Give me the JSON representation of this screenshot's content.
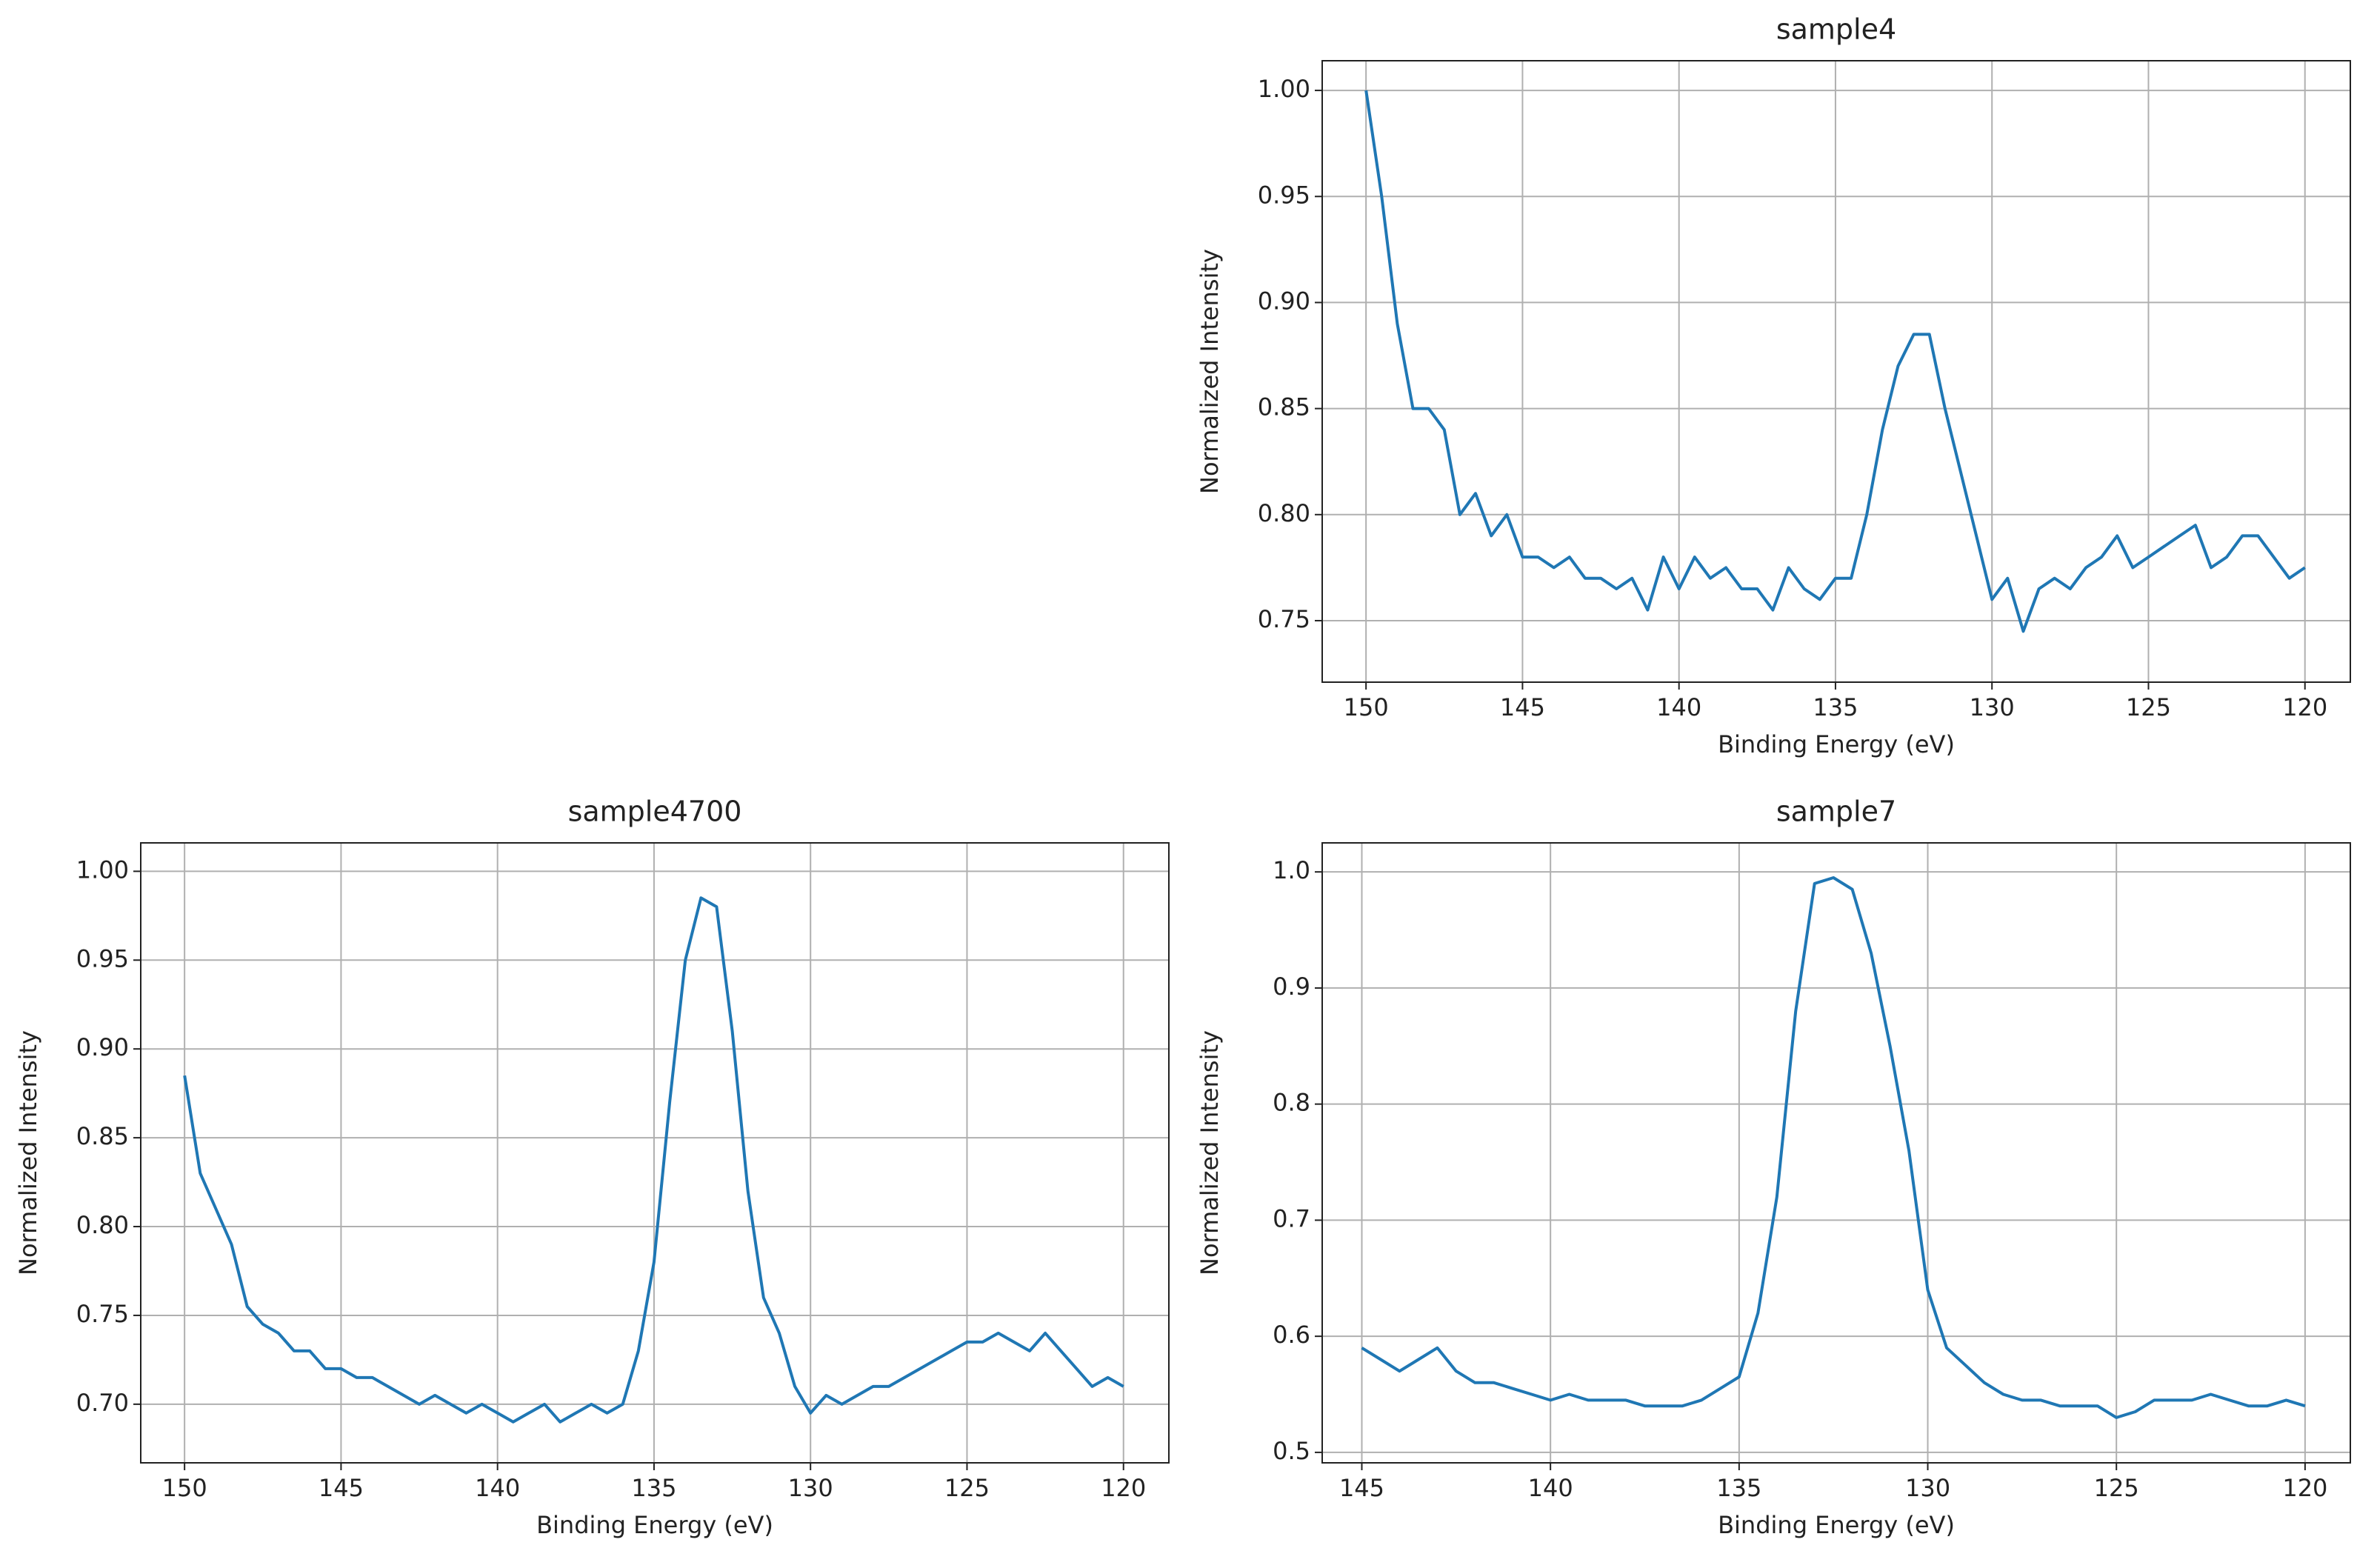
{
  "chart_data": [
    {
      "type": "line",
      "title": "sample4",
      "x_label": "Binding Energy (eV)",
      "y_label": "Normalized Intensity",
      "grid": true,
      "x": [
        150,
        149.5,
        149,
        148.5,
        148,
        147.5,
        147,
        146.5,
        146,
        145.5,
        145,
        144.5,
        144,
        143.5,
        143,
        142.5,
        142,
        141.5,
        141,
        140.5,
        140,
        139.5,
        139,
        138.5,
        138,
        137.5,
        137,
        136.5,
        136,
        135.5,
        135,
        134.5,
        134,
        133.5,
        133,
        132.5,
        132,
        131.5,
        131,
        130.5,
        130,
        129.5,
        129,
        128.5,
        128,
        127.5,
        127,
        126.5,
        126,
        125.5,
        125,
        124.5,
        124,
        123.5,
        123,
        122.5,
        122,
        121.5,
        121,
        120.5,
        120
      ],
      "series": [
        {
          "color": "#1f77b4",
          "values": [
            1.0,
            0.95,
            0.89,
            0.85,
            0.85,
            0.84,
            0.8,
            0.81,
            0.79,
            0.8,
            0.78,
            0.78,
            0.775,
            0.78,
            0.77,
            0.77,
            0.765,
            0.77,
            0.755,
            0.78,
            0.765,
            0.78,
            0.77,
            0.775,
            0.765,
            0.765,
            0.755,
            0.775,
            0.765,
            0.76,
            0.77,
            0.77,
            0.8,
            0.84,
            0.87,
            0.885,
            0.885,
            0.85,
            0.82,
            0.79,
            0.76,
            0.77,
            0.745,
            0.765,
            0.77,
            0.765,
            0.775,
            0.78,
            0.79,
            0.775,
            0.78,
            0.785,
            0.79,
            0.795,
            0.775,
            0.78,
            0.79,
            0.79,
            0.78,
            0.77,
            0.775
          ]
        }
      ],
      "xlim": [
        151.4,
        118.55
      ],
      "xticks": [
        150,
        145,
        140,
        135,
        130,
        125,
        120
      ],
      "ylim": [
        0.721,
        1.014
      ],
      "yticks": [
        0.75,
        {
          "value": 0.8,
          "label": "0.80"
        },
        0.85,
        {
          "value": 0.9,
          "label": "0.90"
        },
        0.95,
        {
          "value": 1,
          "label": "1.00"
        }
      ]
    },
    {
      "type": "line",
      "title": "sample4700",
      "x_label": "Binding Energy (eV)",
      "y_label": "Normalized Intensity",
      "grid": true,
      "x": [
        150,
        149.5,
        149,
        148.5,
        148,
        147.5,
        147,
        146.5,
        146,
        145.5,
        145,
        144.5,
        144,
        143.5,
        143,
        142.5,
        142,
        141.5,
        141,
        140.5,
        140,
        139.5,
        139,
        138.5,
        138,
        137.5,
        137,
        136.5,
        136,
        135.5,
        135,
        134.5,
        134,
        133.5,
        133,
        132.5,
        132,
        131.5,
        131,
        130.5,
        130,
        129.5,
        129,
        128.5,
        128,
        127.5,
        127,
        126.5,
        126,
        125.5,
        125,
        124.5,
        124,
        123.5,
        123,
        122.5,
        122,
        121.5,
        121,
        120.5,
        120
      ],
      "series": [
        {
          "color": "#1f77b4",
          "values": [
            0.885,
            0.83,
            0.81,
            0.79,
            0.755,
            0.745,
            0.74,
            0.73,
            0.73,
            0.72,
            0.72,
            0.715,
            0.715,
            0.71,
            0.705,
            0.7,
            0.705,
            0.7,
            0.695,
            0.7,
            0.695,
            0.69,
            0.695,
            0.7,
            0.69,
            0.695,
            0.7,
            0.695,
            0.7,
            0.73,
            0.78,
            0.87,
            0.95,
            0.985,
            0.98,
            0.91,
            0.82,
            0.76,
            0.74,
            0.71,
            0.695,
            0.705,
            0.7,
            0.705,
            0.71,
            0.71,
            0.715,
            0.72,
            0.725,
            0.73,
            0.735,
            0.735,
            0.74,
            0.735,
            0.73,
            0.74,
            0.73,
            0.72,
            0.71,
            0.715,
            0.71
          ]
        }
      ],
      "xlim": [
        151.4,
        118.55
      ],
      "xticks": [
        150,
        145,
        140,
        135,
        130,
        125,
        120
      ],
      "ylim": [
        0.667,
        1.016
      ],
      "yticks": [
        {
          "value": 0.7,
          "label": "0.70"
        },
        0.75,
        {
          "value": 0.8,
          "label": "0.80"
        },
        0.85,
        {
          "value": 0.9,
          "label": "0.90"
        },
        0.95,
        {
          "value": 1,
          "label": "1.00"
        }
      ]
    },
    {
      "type": "line",
      "title": "sample7",
      "x_label": "Binding Energy (eV)",
      "y_label": "Normalized Intensity",
      "grid": true,
      "x": [
        145,
        144.5,
        144,
        143.5,
        143,
        142.5,
        142,
        141.5,
        141,
        140.5,
        140,
        139.5,
        139,
        138.5,
        138,
        137.5,
        137,
        136.5,
        136,
        135.5,
        135,
        134.5,
        134,
        133.5,
        133,
        132.5,
        132,
        131.5,
        131,
        130.5,
        130,
        129.5,
        129,
        128.5,
        128,
        127.5,
        127,
        126.5,
        126,
        125.5,
        125,
        124.5,
        124,
        123.5,
        123,
        122.5,
        122,
        121.5,
        121,
        120.5,
        120
      ],
      "series": [
        {
          "color": "#1f77b4",
          "values": [
            0.59,
            0.58,
            0.57,
            0.58,
            0.59,
            0.57,
            0.56,
            0.56,
            0.555,
            0.55,
            0.545,
            0.55,
            0.545,
            0.545,
            0.545,
            0.54,
            0.54,
            0.54,
            0.545,
            0.555,
            0.565,
            0.62,
            0.72,
            0.88,
            0.99,
            0.995,
            0.985,
            0.93,
            0.85,
            0.76,
            0.64,
            0.59,
            0.575,
            0.56,
            0.55,
            0.545,
            0.545,
            0.54,
            0.54,
            0.54,
            0.53,
            0.535,
            0.545,
            0.545,
            0.545,
            0.55,
            0.545,
            0.54,
            0.54,
            0.545,
            0.54
          ]
        }
      ],
      "xlim": [
        146.05,
        118.8
      ],
      "xticks": [
        145,
        140,
        135,
        130,
        125,
        120
      ],
      "ylim": [
        0.491,
        1.025
      ],
      "yticks": [
        0.5,
        0.6,
        0.7,
        0.8,
        0.9,
        {
          "value": 1,
          "label": "1.0"
        }
      ]
    }
  ]
}
